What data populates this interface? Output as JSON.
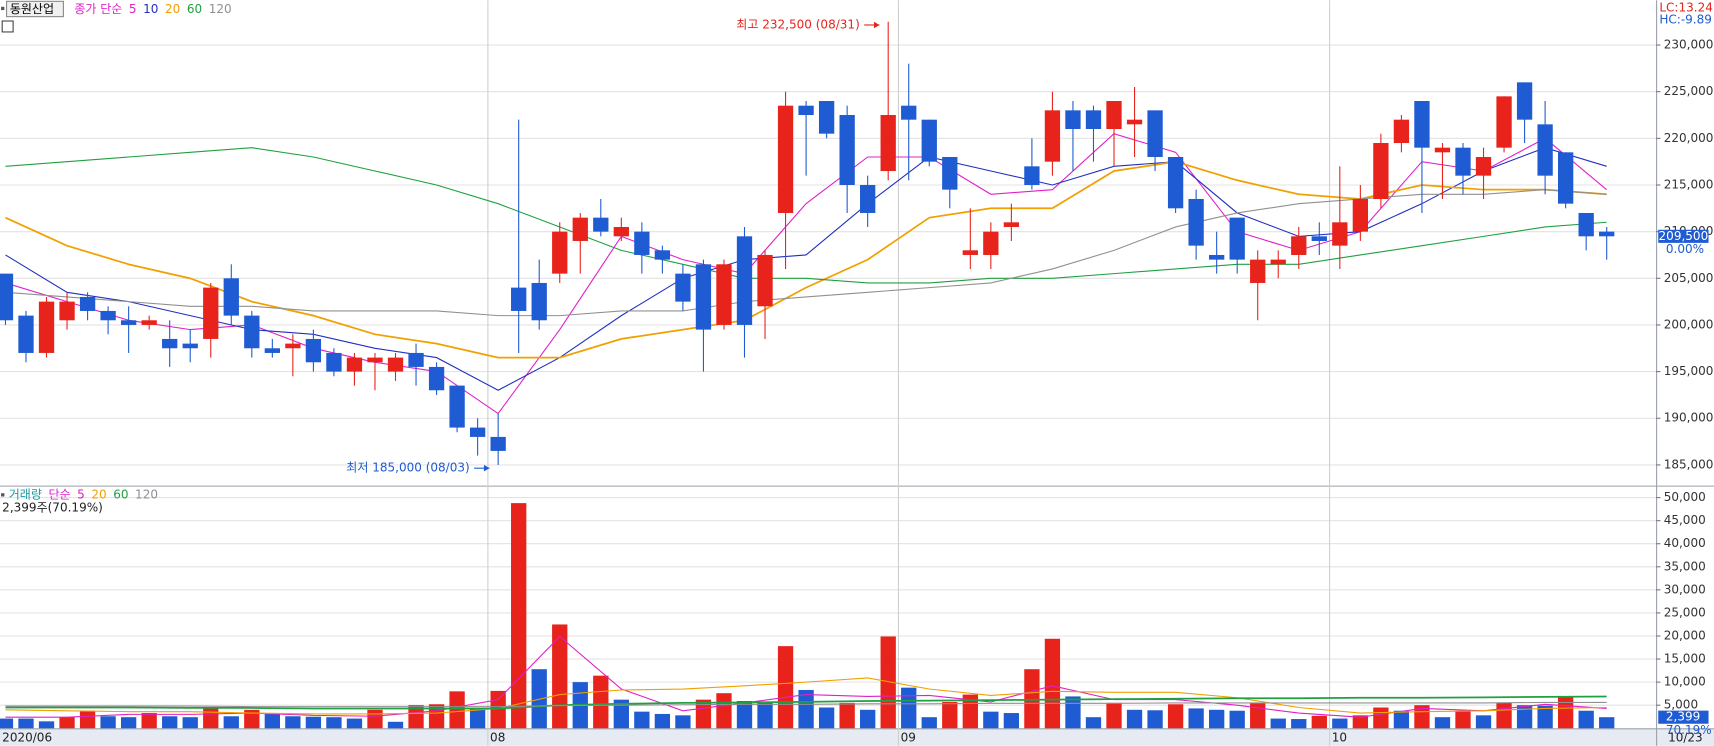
{
  "chart_data": {
    "type": "candlestick",
    "title": "동원산업",
    "ma_prefix": "종가 단순",
    "lc_label": "LC:13.24",
    "hc_label": "HC:-9.89",
    "high_label": "최고 232,500 (08/31)",
    "low_label": "최저 185,000 (08/03)",
    "last_label": "209,500",
    "change_label": "0.00%",
    "up_color": "#e8231c",
    "down_color": "#1f5bd2",
    "categories": [
      "2020/06",
      null,
      null,
      null,
      null,
      null,
      null,
      null,
      null,
      null,
      null,
      null,
      null,
      null,
      null,
      null,
      null,
      null,
      null,
      null,
      null,
      null,
      null,
      null,
      "08",
      null,
      null,
      null,
      null,
      null,
      null,
      null,
      null,
      null,
      null,
      null,
      null,
      null,
      null,
      null,
      null,
      null,
      null,
      null,
      "09",
      null,
      null,
      null,
      null,
      null,
      null,
      null,
      null,
      null,
      null,
      null,
      null,
      null,
      null,
      null,
      null,
      null,
      null,
      null,
      null,
      "10",
      null,
      null,
      null,
      null,
      null,
      null,
      null,
      null,
      null,
      null,
      null,
      null,
      "10/23"
    ],
    "open": [
      205500,
      201000,
      197000,
      200500,
      203000,
      201500,
      200500,
      200000,
      198500,
      198000,
      198500,
      205000,
      201000,
      197500,
      197500,
      198500,
      197000,
      195000,
      196000,
      195000,
      197000,
      195500,
      193500,
      189000,
      188000,
      204000,
      204500,
      205500,
      209000,
      211500,
      209500,
      210000,
      208000,
      205500,
      206500,
      200000,
      209500,
      202000,
      212000,
      223500,
      224000,
      222500,
      215000,
      216500,
      223500,
      222000,
      218000,
      207500,
      207500,
      210500,
      217000,
      217500,
      223000,
      223000,
      221000,
      221500,
      223000,
      218000,
      213500,
      207500,
      211500,
      204500,
      206500,
      207500,
      209500,
      208500,
      210000,
      213500,
      219500,
      224000,
      218500,
      219000,
      216000,
      219000,
      226000,
      221500,
      218500,
      212000,
      210000
    ],
    "high": [
      205500,
      201500,
      203000,
      203500,
      203500,
      202000,
      202000,
      201000,
      200500,
      199500,
      204500,
      206500,
      201500,
      198500,
      199000,
      199500,
      197500,
      197000,
      197000,
      197000,
      198000,
      196000,
      193500,
      190000,
      190500,
      222000,
      207000,
      211000,
      212000,
      213500,
      211500,
      211000,
      208500,
      206500,
      207000,
      207000,
      210500,
      208000,
      225000,
      224000,
      224000,
      223500,
      216000,
      232500,
      228000,
      222000,
      218000,
      212500,
      211000,
      213000,
      220000,
      225000,
      224000,
      223500,
      224000,
      225500,
      223000,
      218000,
      214500,
      210000,
      211500,
      208000,
      208000,
      210500,
      211000,
      217000,
      215000,
      220500,
      222500,
      224000,
      219500,
      219500,
      219000,
      224500,
      226000,
      224000,
      218500,
      212000,
      210500
    ],
    "low": [
      200000,
      196000,
      196500,
      199500,
      200500,
      199000,
      197000,
      199500,
      195500,
      196000,
      196500,
      200000,
      196500,
      196500,
      194500,
      195000,
      194500,
      193500,
      193000,
      194000,
      193500,
      192500,
      188500,
      186000,
      185000,
      197000,
      199500,
      204500,
      205500,
      209500,
      209000,
      205500,
      205500,
      201500,
      195000,
      199500,
      196500,
      198500,
      206000,
      216000,
      220000,
      212000,
      210500,
      215500,
      215500,
      217000,
      212500,
      206000,
      206000,
      209000,
      214500,
      216000,
      216500,
      217500,
      217000,
      218000,
      216500,
      212000,
      207000,
      205500,
      205500,
      200500,
      205000,
      206000,
      207500,
      206000,
      209000,
      212500,
      218500,
      212000,
      213500,
      214000,
      213500,
      218500,
      219500,
      214000,
      212500,
      208000,
      207000
    ],
    "close": [
      200500,
      197000,
      202500,
      202500,
      201500,
      200500,
      200000,
      200500,
      197500,
      197500,
      204000,
      201000,
      197500,
      197000,
      198000,
      196000,
      195000,
      196500,
      196500,
      196500,
      195500,
      193000,
      189000,
      188000,
      186500,
      201500,
      200500,
      210000,
      211500,
      210000,
      210500,
      207500,
      207000,
      202500,
      199500,
      206500,
      200000,
      207500,
      223500,
      222500,
      220500,
      215000,
      212000,
      222500,
      222000,
      217500,
      214500,
      208000,
      210000,
      211000,
      215000,
      223000,
      221000,
      221000,
      224000,
      222000,
      218000,
      212500,
      208500,
      207000,
      207000,
      207000,
      207000,
      209500,
      209000,
      211000,
      213500,
      219500,
      222000,
      219000,
      219000,
      216000,
      218000,
      224500,
      222000,
      216000,
      213000,
      209500,
      209500
    ],
    "ylim": [
      182900,
      234800
    ],
    "yticks": [
      {
        "value": 185000,
        "label": "185,000"
      },
      {
        "value": 190000,
        "label": "190,000"
      },
      {
        "value": 195000,
        "label": "195,000"
      },
      {
        "value": 200000,
        "label": "200,000"
      },
      {
        "value": 205000,
        "label": "205,000"
      },
      {
        "value": 210000,
        "label": "210,000"
      },
      {
        "value": 215000,
        "label": "215,000"
      },
      {
        "value": 220000,
        "label": "220,000"
      },
      {
        "value": 225000,
        "label": "225,000"
      },
      {
        "value": 230000,
        "label": "230,000"
      }
    ],
    "ma_index": [
      0,
      3,
      6,
      9,
      12,
      15,
      18,
      21,
      24,
      27,
      30,
      33,
      36,
      39,
      42,
      45,
      48,
      51,
      54,
      57,
      60,
      63,
      66,
      69,
      72,
      75,
      78
    ],
    "ma": [
      {
        "name": "5",
        "color": "#e020c8",
        "values": [
          204500,
          202500,
          200500,
          199500,
          200000,
          197500,
          196000,
          195000,
          190500,
          199500,
          209500,
          207000,
          205500,
          213000,
          218000,
          218000,
          214000,
          214500,
          220500,
          218500,
          210000,
          208000,
          210000,
          217500,
          216500,
          220000,
          214500
        ]
      },
      {
        "name": "10",
        "color": "#2030c0",
        "values": [
          207500,
          203500,
          202500,
          201000,
          199500,
          199000,
          197500,
          196500,
          193000,
          196500,
          201000,
          205000,
          207000,
          207500,
          213000,
          218000,
          216500,
          215000,
          217000,
          217500,
          212000,
          209500,
          210000,
          213000,
          216500,
          219000,
          217000
        ]
      },
      {
        "name": "20",
        "color": "#f0a000",
        "values": [
          211500,
          208500,
          206500,
          205000,
          202500,
          201000,
          199000,
          198000,
          196500,
          196500,
          198500,
          199500,
          200500,
          204000,
          207000,
          211500,
          212500,
          212500,
          216500,
          217500,
          215500,
          214000,
          213500,
          215000,
          214500,
          214500,
          214000
        ]
      },
      {
        "name": "60",
        "color": "#20a040",
        "values": [
          217000,
          217500,
          218000,
          218500,
          219000,
          218000,
          216500,
          215000,
          213000,
          210500,
          208000,
          206500,
          205000,
          205000,
          204500,
          204500,
          205000,
          205000,
          205500,
          206000,
          206500,
          206500,
          207500,
          208500,
          209500,
          210500,
          211000
        ]
      },
      {
        "name": "120",
        "color": "#909090",
        "values": [
          203500,
          203000,
          202500,
          202000,
          202000,
          201500,
          201500,
          201500,
          201000,
          201000,
          201500,
          201500,
          202500,
          203000,
          203500,
          204000,
          204500,
          206000,
          208000,
          210500,
          212000,
          213000,
          213500,
          214000,
          214000,
          214500,
          214000
        ]
      }
    ],
    "volume": {
      "title": "거래량",
      "ma_prefix": "단순",
      "info": "2,399주(70.19%)",
      "last_label": "2,399",
      "ratio_label": "70.19%",
      "values": [
        2100,
        2100,
        1500,
        2400,
        3800,
        2600,
        2400,
        3300,
        2600,
        2400,
        4500,
        2600,
        4000,
        3300,
        2600,
        2500,
        2400,
        2100,
        4000,
        1400,
        5000,
        5200,
        8000,
        4300,
        8100,
        48800,
        12800,
        22500,
        10000,
        11400,
        6200,
        3600,
        3100,
        2800,
        6200,
        7600,
        5900,
        5500,
        17800,
        8300,
        4500,
        5500,
        4000,
        19900,
        8800,
        2400,
        5700,
        7300,
        3600,
        3300,
        12800,
        19400,
        6900,
        2400,
        5500,
        4000,
        3900,
        5200,
        4300,
        4000,
        3800,
        5500,
        2100,
        2000,
        2700,
        2100,
        2800,
        4500,
        3800,
        5000,
        2400,
        3800,
        2800,
        5500,
        5000,
        4900,
        6900,
        3800,
        2399
      ],
      "ylim": [
        0,
        52600
      ],
      "yticks": [
        {
          "value": 5000,
          "label": "5,000"
        },
        {
          "value": 10000,
          "label": "10,000"
        },
        {
          "value": 15000,
          "label": "15,000"
        },
        {
          "value": 20000,
          "label": "20,000"
        },
        {
          "value": 25000,
          "label": "25,000"
        },
        {
          "value": 30000,
          "label": "30,000"
        },
        {
          "value": 35000,
          "label": "35,000"
        },
        {
          "value": 40000,
          "label": "40,000"
        },
        {
          "value": 45000,
          "label": "45,000"
        },
        {
          "value": 50000,
          "label": "50,000"
        }
      ],
      "ma": [
        {
          "name": "5",
          "color": "#e020c8",
          "values": [
            2400,
            2400,
            3000,
            3000,
            3300,
            2800,
            2600,
            3800,
            6200,
            19900,
            8500,
            3800,
            5500,
            7300,
            6900,
            7100,
            5700,
            9200,
            6200,
            6200,
            5000,
            3300,
            2400,
            4300,
            3800,
            5200,
            4300
          ]
        },
        {
          "name": "20",
          "color": "#f0a000",
          "values": [
            4000,
            3800,
            3600,
            3600,
            3300,
            3100,
            3100,
            3300,
            4300,
            7300,
            8300,
            8500,
            9200,
            10000,
            10900,
            8500,
            7100,
            8000,
            7800,
            7800,
            6600,
            4500,
            3300,
            3600,
            3800,
            4300,
            4500
          ]
        },
        {
          "name": "60",
          "color": "#20a040",
          "values": [
            4500,
            4500,
            4500,
            4400,
            4400,
            4300,
            4300,
            4300,
            4300,
            5000,
            5300,
            5500,
            5600,
            5700,
            5900,
            6000,
            6100,
            6200,
            6300,
            6400,
            6500,
            6500,
            6600,
            6600,
            6700,
            6800,
            6900
          ]
        },
        {
          "name": "120",
          "color": "#909090",
          "values": [
            4800,
            4800,
            4800,
            4800,
            4700,
            4700,
            4700,
            4700,
            4700,
            4900,
            5000,
            5100,
            5200,
            5200,
            5300,
            5300,
            5400,
            5400,
            5400,
            5500,
            5500,
            5500,
            5500,
            5500,
            5500,
            5600,
            5600
          ]
        }
      ]
    }
  }
}
